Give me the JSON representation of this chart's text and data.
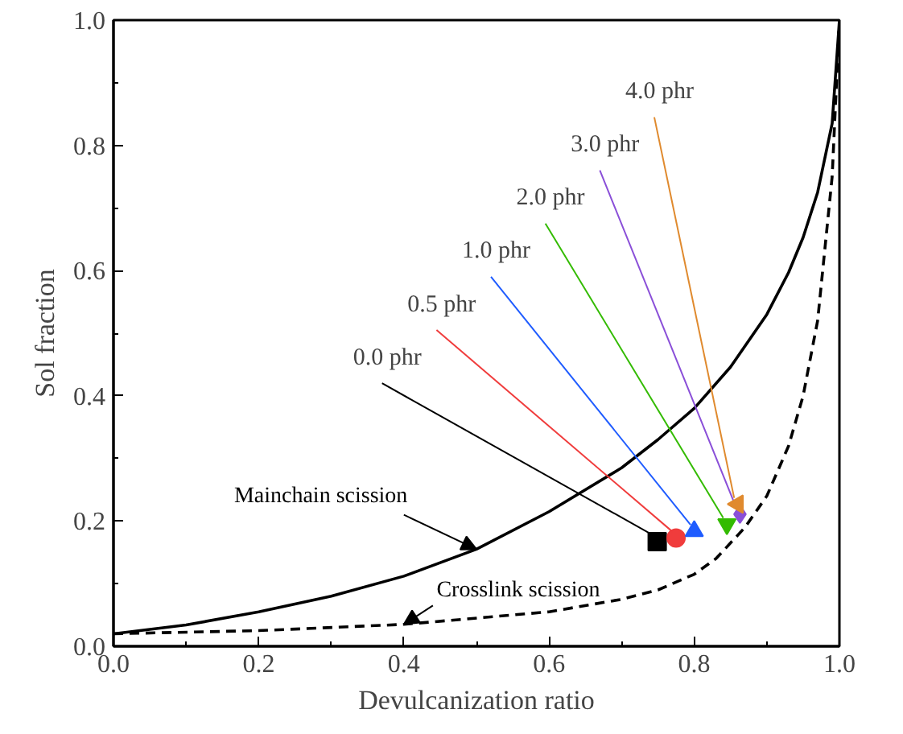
{
  "chart_data": {
    "type": "line",
    "xlabel": "Devulcanization ratio",
    "ylabel": "Sol fraction",
    "xlim": [
      0,
      1
    ],
    "ylim": [
      0,
      1
    ],
    "xticks": [
      {
        "value": 0,
        "label": "0.0"
      },
      0.2,
      0.4,
      0.6,
      0.8,
      {
        "value": 1,
        "label": "1.0"
      }
    ],
    "yticks": [
      {
        "value": 0,
        "label": "0.0"
      },
      0.2,
      0.4,
      0.6,
      0.8,
      {
        "value": 1,
        "label": "1.0"
      }
    ],
    "grid": false,
    "legend": false,
    "series": [
      {
        "name": "Mainchain scission",
        "line_style": "solid",
        "color": "#000000",
        "x": [
          0,
          0.1,
          0.2,
          0.3,
          0.4,
          0.5,
          0.6,
          0.7,
          0.75,
          0.8,
          0.85,
          0.9,
          0.93,
          0.95,
          0.97,
          0.99,
          1.0
        ],
        "values": [
          0.02,
          0.034,
          0.055,
          0.08,
          0.112,
          0.155,
          0.215,
          0.285,
          0.33,
          0.38,
          0.446,
          0.53,
          0.597,
          0.653,
          0.725,
          0.835,
          1.0
        ]
      },
      {
        "name": "Crosslink scission",
        "line_style": "dashed",
        "color": "#000000",
        "x": [
          0,
          0.2,
          0.4,
          0.6,
          0.7,
          0.75,
          0.8,
          0.83,
          0.87,
          0.9,
          0.93,
          0.95,
          0.97,
          0.99,
          1.0
        ],
        "values": [
          0.02,
          0.025,
          0.035,
          0.055,
          0.075,
          0.09,
          0.115,
          0.14,
          0.19,
          0.24,
          0.32,
          0.4,
          0.52,
          0.75,
          1.0
        ]
      },
      {
        "name": "0.0 phr",
        "type": "scatter",
        "marker": "square",
        "color": "#000000",
        "x": [
          0.749
        ],
        "values": [
          0.167
        ]
      },
      {
        "name": "0.5 phr",
        "type": "scatter",
        "marker": "circle",
        "color": "#f03c3c",
        "x": [
          0.775
        ],
        "values": [
          0.173
        ]
      },
      {
        "name": "1.0 phr",
        "type": "scatter",
        "marker": "triangle",
        "color": "#1f5cff",
        "x": [
          0.8
        ],
        "values": [
          0.184
        ]
      },
      {
        "name": "2.0 phr",
        "type": "scatter",
        "marker": "triangle-down",
        "color": "#33bb00",
        "x": [
          0.845
        ],
        "values": [
          0.195
        ]
      },
      {
        "name": "3.0 phr",
        "type": "scatter",
        "marker": "diamond",
        "color": "#8a4fd8",
        "x": [
          0.863
        ],
        "values": [
          0.211
        ]
      },
      {
        "name": "4.0 phr",
        "type": "scatter",
        "marker": "triangle-left",
        "color": "#e08a2e",
        "x": [
          0.86
        ],
        "values": [
          0.227
        ]
      }
    ]
  }
}
